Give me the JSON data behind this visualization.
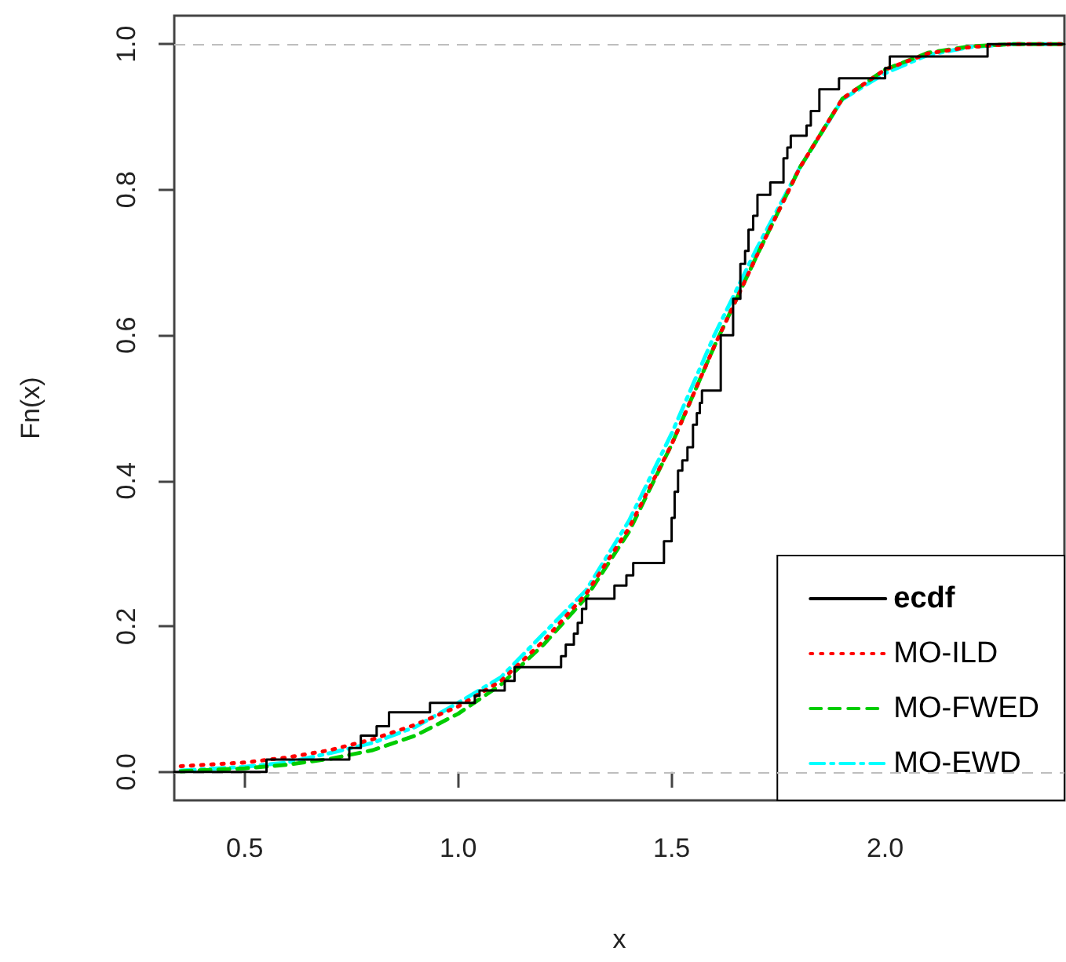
{
  "chart_data": {
    "type": "line",
    "xlabel": "x",
    "ylabel": "Fn(x)",
    "xlim": [
      0.335,
      2.42
    ],
    "ylim": [
      -0.039,
      1.039
    ],
    "xticks": [
      {
        "value": 0.5,
        "label": "0.5"
      },
      {
        "value": 1,
        "label": "1.0"
      },
      {
        "value": 1.5,
        "label": "1.5"
      },
      {
        "value": 2,
        "label": "2.0"
      }
    ],
    "yticks": [
      {
        "value": 0,
        "label": "0.0"
      },
      {
        "value": 0.2,
        "label": "0.2"
      },
      {
        "value": 0.4,
        "label": "0.4"
      },
      {
        "value": 0.6,
        "label": "0.6"
      },
      {
        "value": 0.8,
        "label": "0.8"
      },
      {
        "value": 1,
        "label": "1.0"
      }
    ],
    "grid": false,
    "legend": "bottom right",
    "marker": "none",
    "ref_lines": [
      {
        "axis": "y",
        "value": 0,
        "color": "#bebebe",
        "line_style": "dashed"
      },
      {
        "axis": "y",
        "value": 1,
        "color": "#bebebe",
        "line_style": "dashed"
      }
    ],
    "series": [
      {
        "name": "ecdf",
        "type": "step",
        "color": "#000000",
        "line_style": "solid",
        "x": [
          0.335,
          0.551,
          0.745,
          0.772,
          0.809,
          0.838,
          0.934,
          1.039,
          1.05,
          1.109,
          1.132,
          1.241,
          1.252,
          1.271,
          1.28,
          1.29,
          1.3,
          1.366,
          1.394,
          1.41,
          1.482,
          1.5,
          1.507,
          1.515,
          1.525,
          1.537,
          1.55,
          1.559,
          1.566,
          1.571,
          1.615,
          1.644,
          1.661,
          1.672,
          1.68,
          1.691,
          1.701,
          1.731,
          1.762,
          1.771,
          1.779,
          1.816,
          1.826,
          1.846,
          1.892,
          2.0,
          2.011,
          2.24,
          2.42
        ],
        "values": [
          0,
          0.017,
          0.033,
          0.05,
          0.063,
          0.082,
          0.095,
          0.105,
          0.112,
          0.125,
          0.144,
          0.159,
          0.175,
          0.19,
          0.205,
          0.224,
          0.238,
          0.256,
          0.27,
          0.287,
          0.317,
          0.349,
          0.385,
          0.414,
          0.428,
          0.446,
          0.477,
          0.493,
          0.507,
          0.524,
          0.6,
          0.65,
          0.698,
          0.716,
          0.745,
          0.764,
          0.793,
          0.81,
          0.843,
          0.858,
          0.874,
          0.888,
          0.908,
          0.938,
          0.953,
          0.967,
          0.983,
          1,
          1
        ]
      },
      {
        "name": "MO-ILD",
        "color": "#ff0000",
        "line_style": "dotted",
        "x": [
          0.35,
          0.5,
          0.6,
          0.7,
          0.8,
          0.9,
          1.0,
          1.1,
          1.2,
          1.3,
          1.4,
          1.5,
          1.6,
          1.7,
          1.8,
          1.9,
          2.0,
          2.1,
          2.2,
          2.3,
          2.42
        ],
        "values": [
          0.008,
          0.013,
          0.02,
          0.03,
          0.045,
          0.065,
          0.09,
          0.125,
          0.18,
          0.245,
          0.335,
          0.45,
          0.585,
          0.71,
          0.83,
          0.925,
          0.965,
          0.987,
          0.996,
          1,
          1
        ]
      },
      {
        "name": "MO-FWED",
        "color": "#00cd00",
        "line_style": "dashed",
        "x": [
          0.35,
          0.5,
          0.6,
          0.7,
          0.8,
          0.9,
          1.0,
          1.1,
          1.2,
          1.3,
          1.4,
          1.5,
          1.6,
          1.7,
          1.8,
          1.9,
          2.0,
          2.1,
          2.2,
          2.3,
          2.42
        ],
        "values": [
          0.001,
          0.005,
          0.01,
          0.018,
          0.03,
          0.05,
          0.08,
          0.12,
          0.175,
          0.24,
          0.33,
          0.45,
          0.585,
          0.71,
          0.83,
          0.925,
          0.965,
          0.988,
          0.997,
          1,
          1
        ]
      },
      {
        "name": "MO-EWD",
        "color": "#00ffff",
        "line_style": "dashdot",
        "x": [
          0.35,
          0.5,
          0.6,
          0.7,
          0.8,
          0.9,
          1.0,
          1.1,
          1.2,
          1.3,
          1.4,
          1.5,
          1.6,
          1.7,
          1.8,
          1.9,
          2.0,
          2.1,
          2.2,
          2.3,
          2.42
        ],
        "values": [
          0.002,
          0.007,
          0.013,
          0.026,
          0.04,
          0.062,
          0.095,
          0.13,
          0.19,
          0.25,
          0.345,
          0.465,
          0.6,
          0.72,
          0.83,
          0.924,
          0.96,
          0.985,
          0.996,
          1,
          1
        ]
      }
    ]
  }
}
